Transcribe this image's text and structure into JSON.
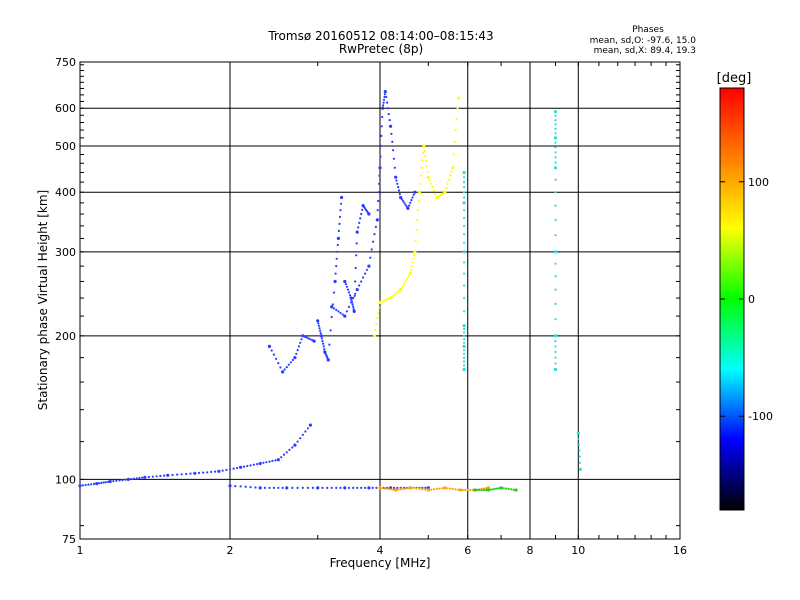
{
  "chart_data": {
    "type": "scatter",
    "title_line1": "Tromsø 20160512 08:14:00–08:15:43",
    "title_line2": "RwPretec (8p)",
    "xlabel": "Frequency [MHz]",
    "ylabel": "Stationary phase Virtual Height [km]",
    "x_scale": "log",
    "y_scale": "log",
    "xlim": [
      1,
      16
    ],
    "ylim": [
      75,
      750
    ],
    "x_ticks": [
      1,
      2,
      4,
      6,
      8,
      10,
      16
    ],
    "y_ticks": [
      75,
      100,
      200,
      300,
      400,
      500,
      600,
      750
    ],
    "grid": "on",
    "x_grid_lines": [
      2,
      4,
      6,
      8,
      10
    ],
    "y_grid_lines": [
      100,
      200,
      300,
      400,
      500,
      600
    ],
    "phases": {
      "heading": "Phases",
      "o_line": "mean, sd,O: -97.6, 15.0",
      "x_line": "mean, sd,X:  89.4, 19.3"
    },
    "colorbar": {
      "label": "[deg]",
      "range": [
        -180,
        180
      ],
      "ticks": [
        100,
        0,
        -100
      ],
      "colors": [
        "#ff0000",
        "#ff7f00",
        "#ffff00",
        "#00ff00",
        "#00ffff",
        "#0000ff",
        "#000000"
      ]
    },
    "series": [
      {
        "color": "#2a3cff",
        "segments": [
          [
            [
              1.0,
              97
            ],
            [
              1.08,
              98
            ],
            [
              1.15,
              99
            ],
            [
              1.25,
              100
            ],
            [
              1.35,
              101
            ],
            [
              1.5,
              102
            ],
            [
              1.7,
              103
            ],
            [
              1.9,
              104
            ],
            [
              2.1,
              106
            ],
            [
              2.3,
              108
            ],
            [
              2.5,
              110
            ],
            [
              2.7,
              118
            ],
            [
              2.9,
              130
            ]
          ],
          [
            [
              2.0,
              97
            ],
            [
              2.3,
              96
            ],
            [
              2.6,
              96
            ],
            [
              3.0,
              96
            ],
            [
              3.4,
              96
            ],
            [
              3.8,
              96
            ],
            [
              4.2,
              96
            ],
            [
              4.6,
              96
            ],
            [
              5.0,
              96
            ]
          ],
          [
            [
              2.4,
              190
            ],
            [
              2.55,
              168
            ],
            [
              2.7,
              180
            ],
            [
              2.8,
              200
            ],
            [
              2.95,
              195
            ]
          ],
          [
            [
              3.0,
              215
            ],
            [
              3.05,
              200
            ],
            [
              3.1,
              185
            ],
            [
              3.15,
              178
            ],
            [
              3.25,
              260
            ],
            [
              3.3,
              320
            ],
            [
              3.35,
              390
            ]
          ],
          [
            [
              3.2,
              230
            ],
            [
              3.4,
              220
            ],
            [
              3.6,
              250
            ],
            [
              3.8,
              280
            ],
            [
              3.95,
              350
            ],
            [
              4.0,
              450
            ],
            [
              4.05,
              600
            ],
            [
              4.1,
              650
            ],
            [
              4.2,
              550
            ],
            [
              4.3,
              430
            ],
            [
              4.4,
              390
            ],
            [
              4.55,
              370
            ],
            [
              4.7,
              400
            ]
          ],
          [
            [
              3.4,
              260
            ],
            [
              3.5,
              240
            ],
            [
              3.55,
              225
            ],
            [
              3.6,
              330
            ],
            [
              3.7,
              375
            ],
            [
              3.8,
              360
            ]
          ]
        ]
      },
      {
        "color": "#ffff00",
        "segments": [
          [
            [
              3.9,
              200
            ],
            [
              4.0,
              235
            ],
            [
              4.2,
              240
            ],
            [
              4.4,
              250
            ],
            [
              4.6,
              270
            ],
            [
              4.7,
              300
            ],
            [
              4.8,
              400
            ],
            [
              4.9,
              500
            ],
            [
              5.0,
              430
            ],
            [
              5.2,
              390
            ],
            [
              5.4,
              400
            ],
            [
              5.6,
              450
            ],
            [
              5.75,
              630
            ]
          ]
        ]
      },
      {
        "color": "#ffa500",
        "segments": [
          [
            [
              4.0,
              96
            ],
            [
              4.3,
              95
            ],
            [
              4.6,
              96
            ],
            [
              5.0,
              95
            ],
            [
              5.4,
              96
            ],
            [
              5.8,
              95
            ],
            [
              6.2,
              95
            ],
            [
              6.6,
              96
            ]
          ]
        ]
      },
      {
        "color": "#22cc22",
        "segments": [
          [
            [
              6.2,
              95
            ],
            [
              6.6,
              95
            ],
            [
              7.0,
              96
            ],
            [
              7.5,
              95
            ]
          ]
        ]
      },
      {
        "color": "#22e0e0",
        "segments": [
          [
            [
              5.9,
              440
            ],
            [
              5.9,
              380
            ],
            [
              5.9,
              300
            ],
            [
              5.9,
              210
            ],
            [
              5.9,
              190
            ],
            [
              5.9,
              170
            ]
          ],
          [
            [
              9.0,
              590
            ],
            [
              9.0,
              520
            ],
            [
              9.0,
              450
            ],
            [
              9.0,
              300
            ],
            [
              9.0,
              200
            ],
            [
              9.0,
              170
            ]
          ],
          [
            [
              10.0,
              125
            ],
            [
              10.1,
              105
            ]
          ]
        ]
      }
    ]
  }
}
